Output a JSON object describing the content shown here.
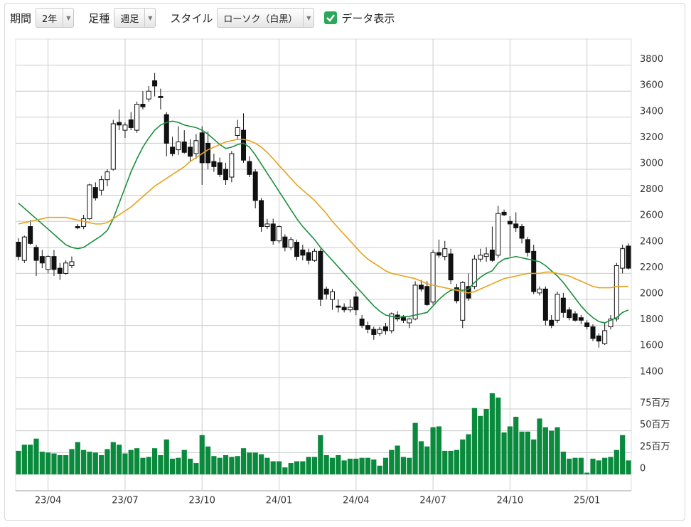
{
  "toolbar": {
    "period_label": "期間",
    "period_value": "2年",
    "interval_label": "足種",
    "interval_value": "週足",
    "style_label": "スタイル",
    "style_value": "ローソク（白黒）",
    "data_label": "データ表示"
  },
  "chart_data": {
    "type": "candlestick",
    "categories": [
      null,
      null,
      null,
      null,
      null,
      "23/04",
      null,
      null,
      null,
      null,
      null,
      null,
      null,
      null,
      null,
      null,
      null,
      null,
      "23/07",
      null,
      null,
      null,
      null,
      null,
      null,
      null,
      null,
      null,
      null,
      null,
      null,
      "23/10",
      null,
      null,
      null,
      null,
      null,
      null,
      null,
      null,
      null,
      null,
      null,
      null,
      "24/01",
      null,
      null,
      null,
      null,
      null,
      null,
      null,
      null,
      null,
      null,
      null,
      null,
      "24/04",
      null,
      null,
      null,
      null,
      null,
      null,
      null,
      null,
      null,
      null,
      null,
      null,
      "24/07",
      null,
      null,
      null,
      null,
      null,
      null,
      null,
      null,
      null,
      null,
      null,
      null,
      "24/10",
      null,
      null,
      null,
      null,
      null,
      null,
      null,
      null,
      null,
      null,
      null,
      null,
      "25/01",
      null,
      null,
      null,
      null,
      null,
      null,
      null
    ],
    "ohlc": [
      [
        2440,
        2470,
        2300,
        2330
      ],
      [
        2300,
        2490,
        2280,
        2480
      ],
      [
        2560,
        2610,
        2420,
        2430
      ],
      [
        2400,
        2420,
        2180,
        2300
      ],
      [
        2330,
        2380,
        2240,
        2280
      ],
      [
        2230,
        2340,
        2200,
        2330
      ],
      [
        2330,
        2380,
        2180,
        2230
      ],
      [
        2240,
        2280,
        2150,
        2200
      ],
      [
        2200,
        2300,
        2190,
        2280
      ],
      [
        2260,
        2330,
        2240,
        2290
      ],
      [
        2560,
        2580,
        2540,
        2550
      ],
      [
        2560,
        2650,
        2540,
        2620
      ],
      [
        2620,
        2890,
        2610,
        2880
      ],
      [
        2860,
        2900,
        2760,
        2780
      ],
      [
        2840,
        2950,
        2800,
        2920
      ],
      [
        2920,
        3000,
        2870,
        2980
      ],
      [
        3000,
        3380,
        2990,
        3350
      ],
      [
        3360,
        3460,
        3300,
        3340
      ],
      [
        3300,
        3360,
        3240,
        3340
      ],
      [
        3380,
        3440,
        3300,
        3320
      ],
      [
        3300,
        3520,
        3280,
        3500
      ],
      [
        3500,
        3600,
        3460,
        3480
      ],
      [
        3540,
        3640,
        3520,
        3600
      ],
      [
        3680,
        3740,
        3560,
        3640
      ],
      [
        3560,
        3620,
        3460,
        3550
      ],
      [
        3420,
        3440,
        3100,
        3200
      ],
      [
        3170,
        3250,
        3100,
        3120
      ],
      [
        3150,
        3330,
        3110,
        3210
      ],
      [
        3210,
        3300,
        3120,
        3130
      ],
      [
        3170,
        3230,
        3060,
        3100
      ],
      [
        3120,
        3270,
        3080,
        3220
      ],
      [
        3280,
        3330,
        2880,
        3050
      ],
      [
        3200,
        3290,
        3000,
        3050
      ],
      [
        3060,
        3120,
        2980,
        3020
      ],
      [
        3050,
        3090,
        2940,
        2960
      ],
      [
        3000,
        3050,
        2880,
        2920
      ],
      [
        2940,
        3140,
        2900,
        3120
      ],
      [
        3260,
        3380,
        3230,
        3320
      ],
      [
        3300,
        3430,
        3050,
        3070
      ],
      [
        3060,
        3100,
        2940,
        2960
      ],
      [
        2980,
        3000,
        2700,
        2760
      ],
      [
        2760,
        2780,
        2520,
        2560
      ],
      [
        2560,
        2620,
        2540,
        2580
      ],
      [
        2580,
        2620,
        2420,
        2450
      ],
      [
        2450,
        2570,
        2430,
        2560
      ],
      [
        2480,
        2500,
        2370,
        2400
      ],
      [
        2400,
        2480,
        2380,
        2460
      ],
      [
        2440,
        2460,
        2300,
        2330
      ],
      [
        2380,
        2420,
        2300,
        2340
      ],
      [
        2360,
        2390,
        2270,
        2300
      ],
      [
        2300,
        2390,
        2290,
        2370
      ],
      [
        2370,
        2390,
        1950,
        2000
      ],
      [
        2080,
        2100,
        2000,
        2040
      ],
      [
        2000,
        2080,
        1920,
        2060
      ],
      [
        1950,
        2000,
        1900,
        1940
      ],
      [
        1940,
        1970,
        1900,
        1920
      ],
      [
        1920,
        2000,
        1900,
        1940
      ],
      [
        2020,
        2060,
        1880,
        1920
      ],
      [
        1850,
        1880,
        1780,
        1800
      ],
      [
        1800,
        1830,
        1740,
        1770
      ],
      [
        1770,
        1790,
        1690,
        1730
      ],
      [
        1740,
        1790,
        1720,
        1770
      ],
      [
        1790,
        1820,
        1730,
        1760
      ],
      [
        1760,
        1900,
        1740,
        1890
      ],
      [
        1880,
        1910,
        1830,
        1850
      ],
      [
        1860,
        1880,
        1820,
        1840
      ],
      [
        1820,
        1860,
        1780,
        1850
      ],
      [
        1850,
        2140,
        1840,
        2110
      ],
      [
        2110,
        2150,
        2060,
        2080
      ],
      [
        2100,
        2140,
        1950,
        1960
      ],
      [
        1980,
        2380,
        1960,
        2360
      ],
      [
        2360,
        2460,
        2320,
        2340
      ],
      [
        2330,
        2450,
        2300,
        2390
      ],
      [
        2350,
        2390,
        2120,
        2150
      ],
      [
        2090,
        2120,
        1970,
        1990
      ],
      [
        1840,
        2140,
        1780,
        2130
      ],
      [
        2100,
        2200,
        1990,
        2010
      ],
      [
        2100,
        2340,
        2080,
        2310
      ],
      [
        2310,
        2390,
        2290,
        2340
      ],
      [
        2330,
        2400,
        2290,
        2350
      ],
      [
        2380,
        2560,
        2290,
        2300
      ],
      [
        2340,
        2720,
        2320,
        2660
      ],
      [
        2670,
        2690,
        2640,
        2650
      ],
      [
        2600,
        2640,
        2330,
        2580
      ],
      [
        2580,
        2670,
        2520,
        2550
      ],
      [
        2560,
        2580,
        2430,
        2470
      ],
      [
        2460,
        2480,
        2330,
        2360
      ],
      [
        2370,
        2420,
        2040,
        2060
      ],
      [
        2050,
        2100,
        2030,
        2080
      ],
      [
        2080,
        2100,
        1800,
        1840
      ],
      [
        1840,
        1880,
        1780,
        1800
      ],
      [
        1840,
        2060,
        1820,
        2040
      ],
      [
        2010,
        2050,
        1860,
        1900
      ],
      [
        1920,
        1940,
        1840,
        1860
      ],
      [
        1890,
        1910,
        1830,
        1840
      ],
      [
        1860,
        1880,
        1810,
        1840
      ],
      [
        1820,
        1840,
        1770,
        1790
      ],
      [
        1790,
        1810,
        1680,
        1700
      ],
      [
        1720,
        1740,
        1630,
        1680
      ],
      [
        1660,
        1820,
        1650,
        1760
      ],
      [
        1790,
        1880,
        1770,
        1850
      ],
      [
        1850,
        2280,
        1830,
        2260
      ],
      [
        2240,
        2420,
        2200,
        2390
      ],
      [
        2410,
        2430,
        2230,
        2240
      ]
    ],
    "up_color": "#ffffff",
    "down_color": "#111111",
    "series": [
      {
        "color": "#1a8f3c",
        "values": [
          2740,
          2700,
          2660,
          2620,
          2580,
          2540,
          2500,
          2460,
          2420,
          2400,
          2390,
          2400,
          2430,
          2460,
          2490,
          2530,
          2620,
          2740,
          2860,
          2980,
          3080,
          3170,
          3240,
          3300,
          3340,
          3360,
          3370,
          3360,
          3340,
          3330,
          3320,
          3300,
          3270,
          3230,
          3190,
          3160,
          3170,
          3190,
          3200,
          3170,
          3110,
          3040,
          2970,
          2900,
          2830,
          2760,
          2690,
          2620,
          2560,
          2510,
          2460,
          2400,
          2350,
          2300,
          2250,
          2200,
          2150,
          2100,
          2050,
          2000,
          1950,
          1910,
          1880,
          1870,
          1860,
          1870,
          1870,
          1880,
          1890,
          1900,
          1950,
          2000,
          2040,
          2070,
          2080,
          2070,
          2080,
          2130,
          2170,
          2200,
          2220,
          2280,
          2310,
          2320,
          2330,
          2320,
          2310,
          2300,
          2290,
          2260,
          2220,
          2180,
          2130,
          2070,
          2010,
          1950,
          1900,
          1860,
          1830,
          1820,
          1840,
          1860,
          1900,
          1920
        ]
      },
      {
        "color": "#e8a21a",
        "values": [
          2580,
          2590,
          2600,
          2610,
          2620,
          2630,
          2630,
          2630,
          2630,
          2620,
          2610,
          2600,
          2590,
          2580,
          2580,
          2590,
          2620,
          2650,
          2680,
          2710,
          2750,
          2790,
          2830,
          2870,
          2900,
          2930,
          2960,
          2990,
          3020,
          3060,
          3090,
          3120,
          3150,
          3170,
          3190,
          3210,
          3220,
          3230,
          3230,
          3220,
          3200,
          3170,
          3130,
          3080,
          3030,
          2980,
          2930,
          2880,
          2840,
          2800,
          2760,
          2710,
          2660,
          2600,
          2550,
          2500,
          2450,
          2400,
          2350,
          2310,
          2280,
          2250,
          2220,
          2200,
          2190,
          2180,
          2170,
          2160,
          2140,
          2120,
          2110,
          2100,
          2090,
          2080,
          2070,
          2060,
          2050,
          2060,
          2080,
          2100,
          2120,
          2140,
          2160,
          2170,
          2180,
          2190,
          2200,
          2200,
          2200,
          2210,
          2210,
          2200,
          2190,
          2180,
          2160,
          2140,
          2120,
          2100,
          2090,
          2090,
          2090,
          2100,
          2100,
          2100
        ]
      }
    ],
    "ylim": [
      1350,
      4000
    ],
    "yticks": [
      1400,
      1600,
      1800,
      2000,
      2200,
      2400,
      2600,
      2800,
      3000,
      3200,
      3400,
      3600,
      3800
    ],
    "grid": true,
    "volume": {
      "color": "#0a8a3c",
      "ylim": [
        0,
        100
      ],
      "yticks": [
        0,
        {
          "value": 25,
          "label": "25百万"
        },
        {
          "value": 50,
          "label": "50百万"
        },
        {
          "value": 75,
          "label": "75百万"
        }
      ],
      "values": [
        27,
        34,
        34,
        41,
        26,
        25,
        24,
        22,
        22,
        29,
        37,
        28,
        26,
        25,
        22,
        29,
        37,
        34,
        24,
        28,
        30,
        19,
        20,
        30,
        22,
        40,
        18,
        19,
        28,
        18,
        13,
        45,
        32,
        21,
        19,
        22,
        20,
        21,
        30,
        25,
        25,
        23,
        19,
        15,
        15,
        8,
        13,
        15,
        15,
        20,
        20,
        45,
        22,
        19,
        22,
        16,
        18,
        18,
        19,
        19,
        17,
        10,
        19,
        28,
        33,
        20,
        19,
        59,
        38,
        32,
        54,
        55,
        27,
        27,
        28,
        40,
        46,
        76,
        67,
        75,
        93,
        88,
        48,
        55,
        66,
        49,
        49,
        40,
        64,
        54,
        50,
        54,
        26,
        18,
        19,
        19,
        2,
        18,
        16,
        19,
        20,
        28,
        45,
        16
      ]
    }
  }
}
